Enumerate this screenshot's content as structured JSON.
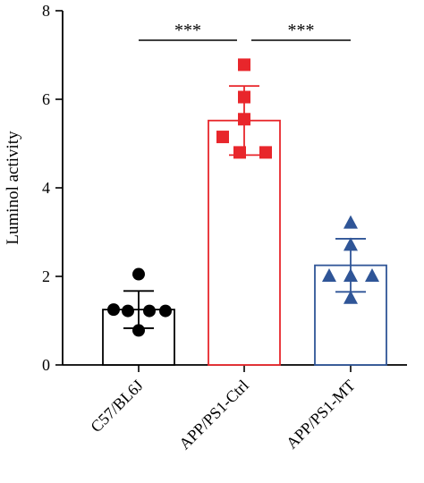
{
  "chart_data": {
    "type": "bar",
    "categories": [
      "C57/BL6J",
      "APP/PS1-Ctrl",
      "APP/PS1-MT"
    ],
    "values": [
      1.25,
      5.52,
      2.25
    ],
    "error": [
      0.42,
      0.78,
      0.6
    ],
    "colors": [
      "#000000",
      "#e8262b",
      "#2f5597"
    ],
    "markers": [
      "circle",
      "square",
      "triangle"
    ],
    "points": [
      [
        2.05,
        1.25,
        1.22,
        1.22,
        1.22,
        0.78
      ],
      [
        6.78,
        6.05,
        5.55,
        5.15,
        4.8,
        4.8
      ],
      [
        3.2,
        2.7,
        2.0,
        2.0,
        2.0,
        1.5
      ]
    ],
    "ylabel": "Luminol activity",
    "xlabel": "",
    "ylim": [
      0,
      8
    ],
    "yticks": [
      "0",
      "2",
      "4",
      "6",
      "8"
    ],
    "significance": [
      {
        "from": 0,
        "to": 1,
        "label": "***"
      },
      {
        "from": 1,
        "to": 2,
        "label": "***"
      }
    ]
  }
}
